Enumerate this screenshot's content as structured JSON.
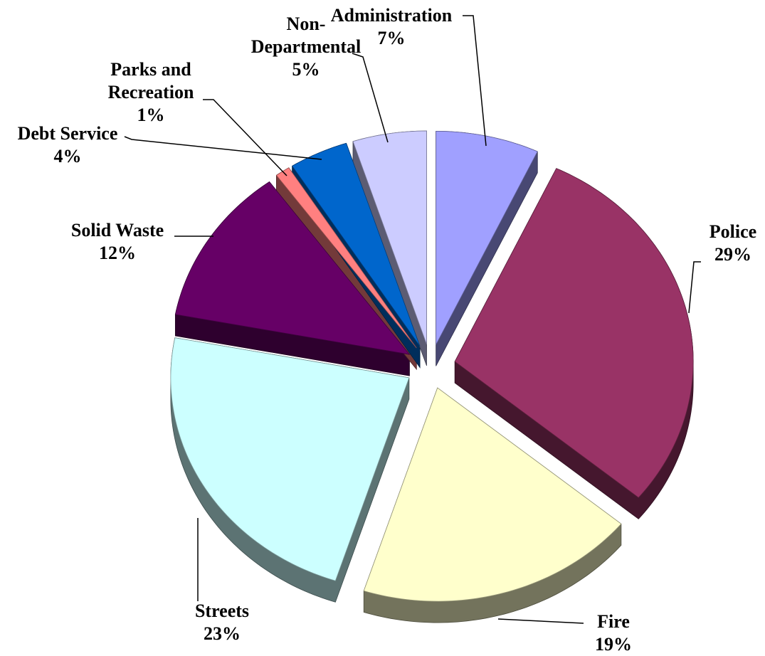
{
  "chart_data": {
    "type": "pie",
    "categories": [
      "Administration",
      "Police",
      "Fire",
      "Streets",
      "Solid Waste",
      "Parks and Recreation",
      "Debt Service",
      "Non-Departmental"
    ],
    "values": [
      7,
      29,
      19,
      23,
      12,
      1,
      4,
      5
    ],
    "value_labels": [
      "7%",
      "29%",
      "19%",
      "23%",
      "12%",
      "1%",
      "4%",
      "5%"
    ],
    "colors": [
      "#a0a0ff",
      "#993366",
      "#ffffcc",
      "#ccffff",
      "#660066",
      "#ff8080",
      "#0066cc",
      "#ccccff"
    ]
  }
}
